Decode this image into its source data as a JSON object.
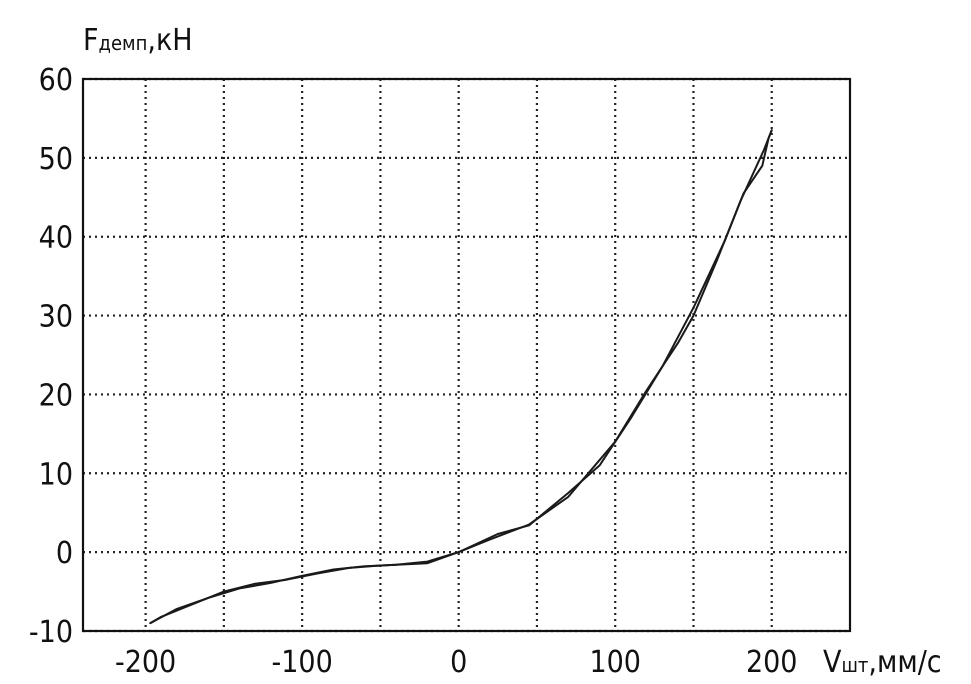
{
  "chart_data": {
    "type": "line",
    "title": "",
    "ylabel": {
      "main": "F",
      "sub": "демп",
      "unit": ",кН"
    },
    "xlabel": {
      "main": "V",
      "sub": "шт",
      "unit": ",мм/с"
    },
    "xlim": [
      -240,
      250
    ],
    "ylim": [
      -10,
      60
    ],
    "xticks": [
      -200,
      -100,
      0,
      100,
      200
    ],
    "yticks": [
      -10,
      0,
      10,
      20,
      30,
      40,
      50,
      60
    ],
    "xgrid": [
      -200,
      -150,
      -100,
      -50,
      0,
      50,
      100,
      150,
      200
    ],
    "grid": true,
    "series": [
      {
        "values": [
          [
            -197,
            -9.0
          ],
          [
            -180,
            -7.2
          ],
          [
            -160,
            -5.8
          ],
          [
            -140,
            -4.6
          ],
          [
            -120,
            -3.9
          ],
          [
            -100,
            -3.0
          ],
          [
            -80,
            -2.2
          ],
          [
            -60,
            -1.8
          ],
          [
            -40,
            -1.6
          ],
          [
            -20,
            -1.2
          ],
          [
            0,
            0.0
          ],
          [
            20,
            1.6
          ],
          [
            45,
            3.5
          ],
          [
            70,
            7.0
          ],
          [
            100,
            14.0
          ],
          [
            120,
            20.5
          ],
          [
            140,
            26.5
          ],
          [
            150,
            30.0
          ],
          [
            165,
            37.0
          ],
          [
            180,
            44.5
          ],
          [
            195,
            51.0
          ],
          [
            200,
            53.5
          ]
        ]
      },
      {
        "values": [
          [
            200,
            53.5
          ],
          [
            198,
            52.5
          ],
          [
            194,
            49.0
          ],
          [
            182,
            45.5
          ],
          [
            170,
            39.5
          ],
          [
            150,
            31.0
          ],
          [
            130,
            23.5
          ],
          [
            110,
            17.0
          ],
          [
            90,
            11.0
          ],
          [
            70,
            7.5
          ],
          [
            45,
            3.4
          ],
          [
            25,
            2.3
          ],
          [
            0,
            0.0
          ],
          [
            -20,
            -1.4
          ],
          [
            -50,
            -1.7
          ],
          [
            -70,
            -2.0
          ],
          [
            -90,
            -2.7
          ],
          [
            -110,
            -3.5
          ],
          [
            -130,
            -4.0
          ],
          [
            -150,
            -5.0
          ],
          [
            -170,
            -6.6
          ],
          [
            -190,
            -8.2
          ],
          [
            -197,
            -9.0
          ]
        ]
      }
    ]
  }
}
